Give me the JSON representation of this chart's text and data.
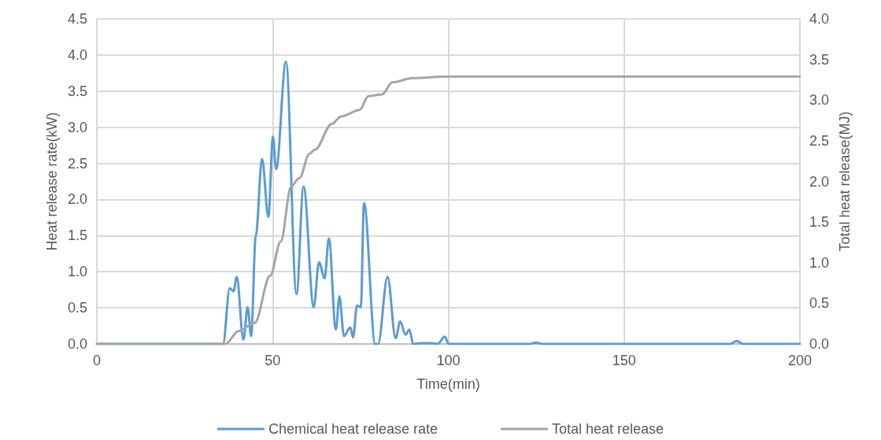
{
  "chart_data": {
    "type": "line",
    "xlabel": "Time(min)",
    "ylabel": "Heat release rate(kW)",
    "y2label": "Total heat release(MJ)",
    "xlim": [
      0,
      200
    ],
    "xticks": [
      0,
      50,
      100,
      150,
      200
    ],
    "ylim": [
      0,
      4.5
    ],
    "yticks": [
      {
        "value": 0,
        "label": "0.0"
      },
      0.5,
      {
        "value": 1,
        "label": "1.0"
      },
      1.5,
      {
        "value": 2,
        "label": "2.0"
      },
      2.5,
      {
        "value": 3,
        "label": "3.0"
      },
      3.5,
      {
        "value": 4,
        "label": "4.0"
      },
      4.5
    ],
    "y2lim": [
      0,
      4
    ],
    "y2ticks": [
      {
        "value": 0,
        "label": "0.0"
      },
      0.5,
      {
        "value": 1,
        "label": "1.0"
      },
      1.5,
      {
        "value": 2,
        "label": "2.0"
      },
      2.5,
      {
        "value": 3,
        "label": "3.0"
      },
      3.5,
      {
        "value": 4,
        "label": "4.0"
      }
    ],
    "grid": true,
    "legend": "bottom",
    "marker": "none",
    "line_style": "solid",
    "series": [
      {
        "name": "Chemical heat release rate",
        "color": "#5b9bd5",
        "x": [
          0,
          35.9,
          37.8,
          38.9,
          39.8,
          41.7,
          42.9,
          43.9,
          45.2,
          47.0,
          48.8,
          50.1,
          51.0,
          53.8,
          56.8,
          58.8,
          61.7,
          63.2,
          64.8,
          66.0,
          68.0,
          69.0,
          70.3,
          72.1,
          72.9,
          74.0,
          75.1,
          76.0,
          79.2,
          80.0,
          82.7,
          85.0,
          86.3,
          87.8,
          88.9,
          90.0,
          92.4,
          95.4,
          96.9,
          99.0,
          100.1,
          123,
          125,
          127,
          180,
          182,
          184,
          200
        ],
        "values": [
          0,
          0,
          0.77,
          0.73,
          0.93,
          0.06,
          0.51,
          0.11,
          1.49,
          2.56,
          1.76,
          2.87,
          2.42,
          3.91,
          0.69,
          2.18,
          0.51,
          1.13,
          0.91,
          1.46,
          0.2,
          0.66,
          0.11,
          0.23,
          0.09,
          0.53,
          0.51,
          1.95,
          0,
          0,
          0.93,
          0.08,
          0.31,
          0.13,
          0.2,
          0,
          0.01,
          0.01,
          0,
          0.1,
          0,
          0,
          0.02,
          0,
          0,
          0.04,
          0,
          0
        ]
      },
      {
        "name": "Total heat release",
        "color": "#a5a5a5",
        "axis": "y2",
        "x": [
          0,
          36.5,
          40.4,
          44.9,
          49.3,
          52.3,
          55.3,
          57.6,
          60.5,
          62.0,
          66.9,
          69.5,
          74.7,
          77.3,
          81.1,
          84.1,
          89.7,
          100,
          200
        ],
        "values": [
          0,
          0,
          0.16,
          0.26,
          0.84,
          1.26,
          1.94,
          2.04,
          2.34,
          2.39,
          2.71,
          2.8,
          2.88,
          3.05,
          3.07,
          3.22,
          3.27,
          3.29,
          3.29
        ]
      }
    ]
  }
}
